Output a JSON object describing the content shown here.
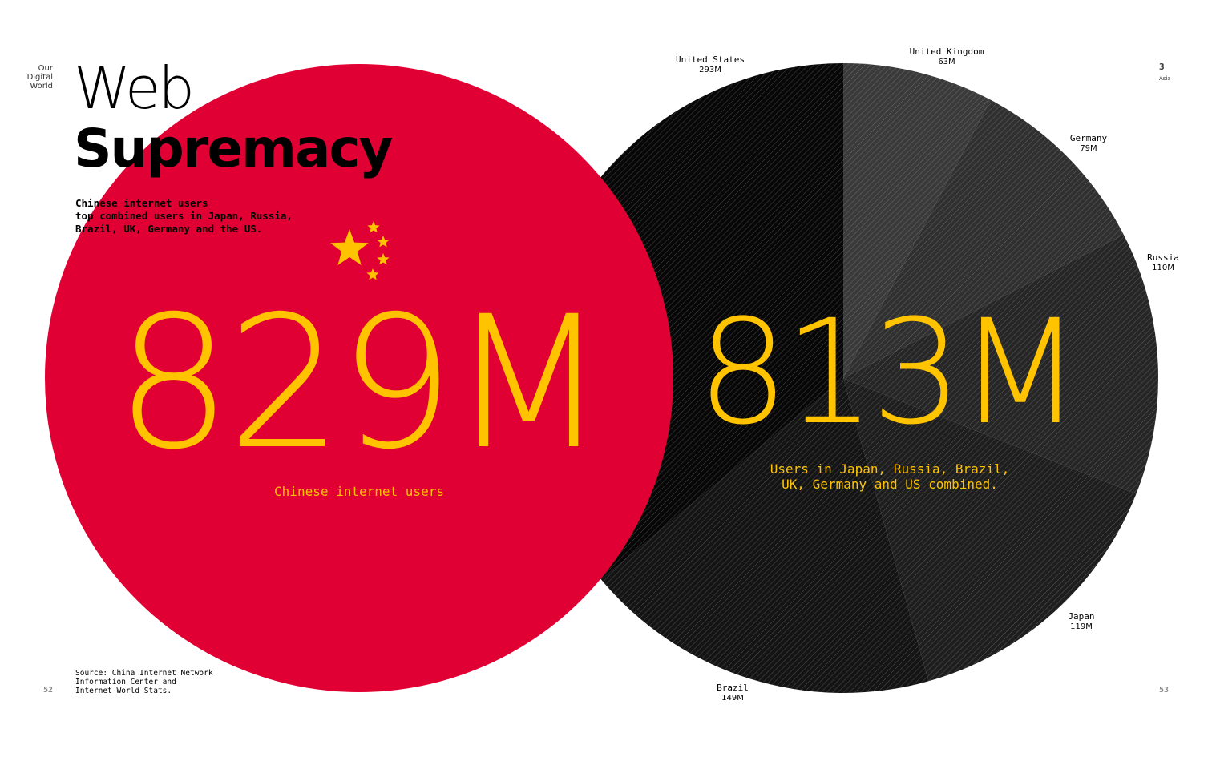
{
  "sidebar": {
    "line1": "Our",
    "line2": "Digital",
    "line3": "World"
  },
  "title": {
    "line1": "Web",
    "line2": "Supremacy"
  },
  "subtitle": {
    "line1": "Chinese internet users",
    "line2": "top combined users in Japan, Russia,",
    "line3": "Brazil, UK, Germany and the US."
  },
  "source": {
    "line1": "Source: China Internet Network",
    "line2": "Information Center and",
    "line3": "Internet World Stats."
  },
  "page_left": "52",
  "page_right": "53",
  "section": {
    "number": "3",
    "name": "Asia"
  },
  "colors": {
    "china_red": "#e10033",
    "accent_yellow": "#ffc300",
    "dark": "#0a0a0a",
    "background": "#ffffff"
  },
  "icons": {
    "flag": "china-flag-stars-icon"
  },
  "chart_data": [
    {
      "type": "pie",
      "series": [
        {
          "name": "Chinese internet users",
          "values": [
            829
          ]
        }
      ],
      "unit": "M",
      "total_label": "829M",
      "caption": "Chinese internet users"
    },
    {
      "type": "pie",
      "unit": "M",
      "total_label": "813M",
      "caption_line1": "Users in Japan, Russia, Brazil,",
      "caption_line2": "UK, Germany and US combined.",
      "categories": [
        "United Kingdom",
        "Germany",
        "Russia",
        "Japan",
        "Brazil",
        "United States"
      ],
      "values": [
        63,
        79,
        110,
        119,
        149,
        293
      ],
      "value_labels": [
        "63M",
        "79M",
        "110M",
        "119M",
        "149M",
        "293M"
      ]
    }
  ]
}
